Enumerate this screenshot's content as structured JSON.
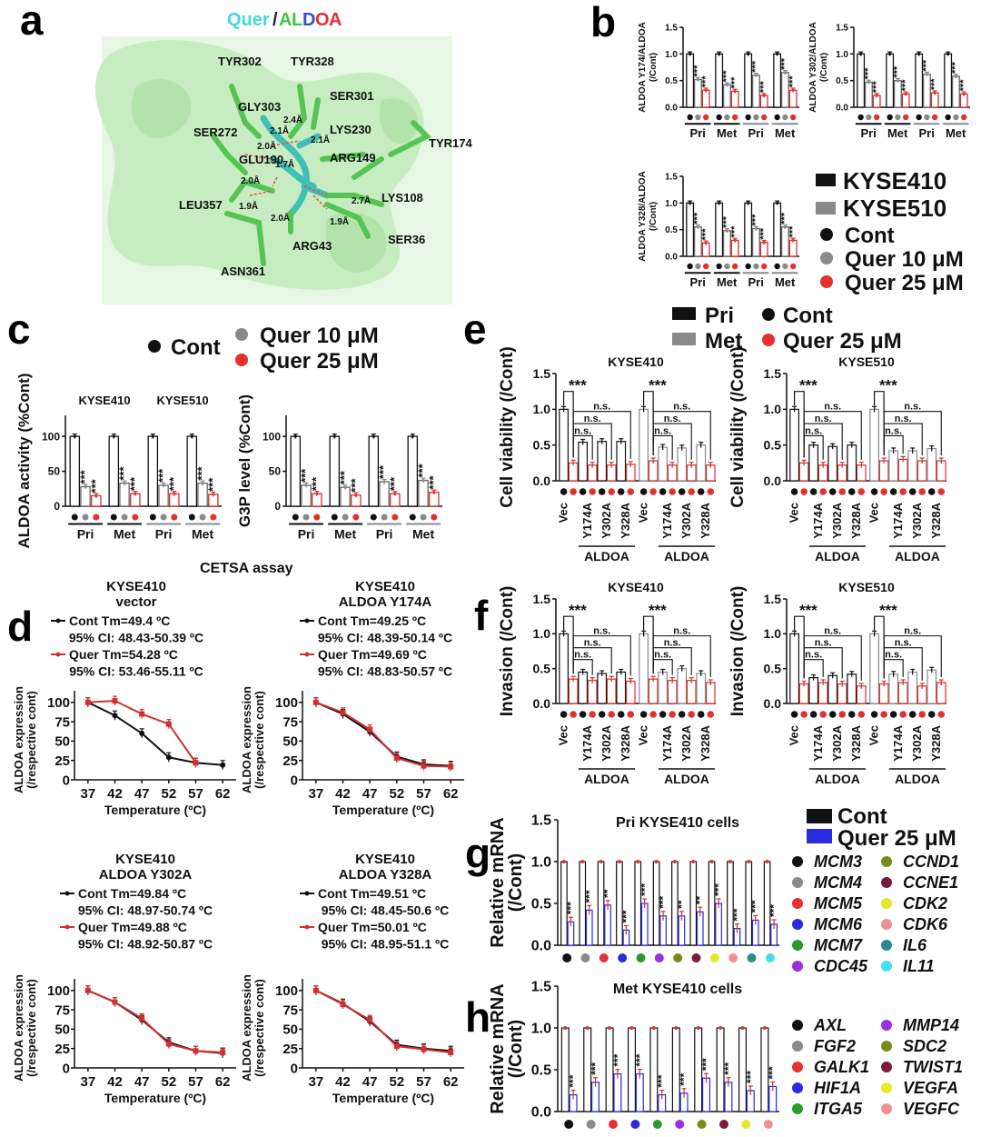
{
  "panel_letters": [
    "a",
    "b",
    "c",
    "d",
    "e",
    "f",
    "g",
    "h"
  ],
  "panel_a": {
    "title_quer": "Quer",
    "title_sep": "/",
    "title_aldoa": [
      "A",
      "L",
      "D",
      "O",
      "A"
    ],
    "title_aldoa_colors": [
      "#44c444",
      "#44c444",
      "#3050d0",
      "#e03030",
      "#e03030"
    ],
    "residues": [
      "TYR302",
      "TYR328",
      "SER301",
      "GLY303",
      "LYS230",
      "SER272",
      "TYR174",
      "ARG149",
      "GLU190",
      "LEU357",
      "LYS108",
      "ARG43",
      "SER36",
      "ASN361"
    ],
    "distances": [
      "2.4Å",
      "2.1Å",
      "2.1Å",
      "2.0Å",
      "2.0Å",
      "1.7Å",
      "1.9Å",
      "2.0Å",
      "2.7Å",
      "1.9Å"
    ]
  },
  "legend_b": {
    "lines": [
      "KYSE410",
      "KYSE510"
    ],
    "dots": [
      "Cont",
      "Quer 10 μM",
      "Quer 25 μM"
    ],
    "dot_colors": [
      "#111111",
      "#8a8a8a",
      "#e53030"
    ]
  },
  "legend_c": {
    "labels": [
      "Cont",
      "Quer 10 μM",
      "Quer 25 μM"
    ],
    "colors": [
      "#111111",
      "#8a8a8a",
      "#e53030"
    ]
  },
  "legend_e": {
    "bars": [
      "Pri",
      "Met"
    ],
    "dots": [
      "Cont",
      "Quer 25 μM"
    ]
  },
  "legend_g": {
    "bars": [
      "Cont",
      "Quer 25 μM"
    ],
    "bar_colors": [
      "#111111",
      "#2a2ae0"
    ]
  },
  "sig": {
    "star": "***",
    "star2": "**",
    "ns": "n.s."
  },
  "group_labels": {
    "pri": "Pri",
    "met": "Met",
    "vec": "Vec",
    "aldoa": "ALDOA",
    "mutants": [
      "Y174A",
      "Y302A",
      "Y328A"
    ]
  },
  "cetsa_label": "CETSA assay",
  "chart_data": [
    {
      "id": "b1",
      "type": "bar",
      "ylabel": "ALDOA Y174/ALDOA",
      "ylabel2": "(/Cont)",
      "ylim": [
        0,
        1.5
      ],
      "yticks": [
        "0.0",
        "0.5",
        "1.0",
        "1.5"
      ],
      "groups": [
        "Pri",
        "Met",
        "Pri",
        "Met"
      ],
      "values": [
        [
          1.0,
          0.52,
          0.32
        ],
        [
          1.0,
          0.42,
          0.3
        ],
        [
          1.0,
          0.6,
          0.22
        ],
        [
          1.0,
          0.65,
          0.32
        ]
      ]
    },
    {
      "id": "b2",
      "type": "bar",
      "ylabel": "ALDOA Y302/ALDOA",
      "ylabel2": "(/Cont)",
      "ylim": [
        0,
        1.5
      ],
      "yticks": [
        "0.0",
        "0.5",
        "1.0",
        "1.5"
      ],
      "groups": [
        "Pri",
        "Met",
        "Pri",
        "Met"
      ],
      "values": [
        [
          1.0,
          0.47,
          0.22
        ],
        [
          1.0,
          0.5,
          0.25
        ],
        [
          1.0,
          0.62,
          0.27
        ],
        [
          1.0,
          0.58,
          0.25
        ]
      ]
    },
    {
      "id": "b3",
      "type": "bar",
      "ylabel": "ALDOA Y328/ALDOA",
      "ylabel2": "(/Cont)",
      "ylim": [
        0,
        1.5
      ],
      "yticks": [
        "0.0",
        "0.5",
        "1.0",
        "1.5"
      ],
      "groups": [
        "Pri",
        "Met",
        "Pri",
        "Met"
      ],
      "values": [
        [
          1.0,
          0.55,
          0.25
        ],
        [
          1.0,
          0.48,
          0.3
        ],
        [
          1.0,
          0.52,
          0.26
        ],
        [
          1.0,
          0.55,
          0.3
        ]
      ]
    },
    {
      "id": "c1",
      "type": "bar",
      "ylabel": "ALDOA activity (%Cont)",
      "ylim": [
        0,
        130
      ],
      "yticks": [
        "0",
        "50",
        "100"
      ],
      "ytick_values": [
        0,
        50,
        100
      ],
      "cell_lines": [
        "KYSE410",
        "KYSE510"
      ],
      "groups": [
        "Pri",
        "Met",
        "Pri",
        "Met"
      ],
      "values": [
        [
          100,
          28,
          15
        ],
        [
          100,
          33,
          18
        ],
        [
          100,
          30,
          18
        ],
        [
          100,
          33,
          17
        ]
      ]
    },
    {
      "id": "c2",
      "type": "bar",
      "ylabel": "G3P level (%Cont)",
      "ylim": [
        0,
        130
      ],
      "yticks": [
        "0",
        "50",
        "100"
      ],
      "ytick_values": [
        0,
        50,
        100
      ],
      "groups": [
        "Pri",
        "Met",
        "Pri",
        "Met"
      ],
      "values": [
        [
          100,
          30,
          18
        ],
        [
          100,
          27,
          16
        ],
        [
          100,
          35,
          18
        ],
        [
          100,
          37,
          20
        ]
      ]
    },
    {
      "id": "e1",
      "type": "bar",
      "title": "KYSE410",
      "ylabel": "Cell viability (/Cont)",
      "ylim": [
        0,
        1.5
      ],
      "yticks": [
        "0.0",
        "0.5",
        "1.0",
        "1.5"
      ],
      "values": [
        [
          1.0,
          0.25,
          0.54,
          0.22,
          0.55,
          0.22,
          0.55,
          0.23
        ],
        [
          1.0,
          0.28,
          0.47,
          0.22,
          0.46,
          0.22,
          0.5,
          0.22
        ]
      ]
    },
    {
      "id": "e2",
      "type": "bar",
      "title": "KYSE510",
      "ylabel": "Cell viability (/Cont)",
      "ylim": [
        0,
        1.5
      ],
      "yticks": [
        "0.0",
        "0.5",
        "1.0",
        "1.5"
      ],
      "values": [
        [
          1.0,
          0.25,
          0.5,
          0.22,
          0.48,
          0.22,
          0.5,
          0.22
        ],
        [
          1.0,
          0.28,
          0.42,
          0.3,
          0.42,
          0.28,
          0.45,
          0.28
        ]
      ]
    },
    {
      "id": "f1",
      "type": "bar",
      "title": "KYSE410",
      "ylabel": "Invasion (/Cont)",
      "ylim": [
        0,
        1.5
      ],
      "yticks": [
        "0.0",
        "0.5",
        "1.0",
        "1.5"
      ],
      "values": [
        [
          1.0,
          0.35,
          0.45,
          0.33,
          0.43,
          0.35,
          0.45,
          0.32
        ],
        [
          1.0,
          0.35,
          0.45,
          0.33,
          0.5,
          0.33,
          0.43,
          0.3
        ]
      ]
    },
    {
      "id": "f2",
      "type": "bar",
      "title": "KYSE510",
      "ylabel": "Invasion (/Cont)",
      "ylim": [
        0,
        1.5
      ],
      "yticks": [
        "0.0",
        "0.5",
        "1.0",
        "1.5"
      ],
      "values": [
        [
          1.0,
          0.28,
          0.37,
          0.3,
          0.4,
          0.28,
          0.42,
          0.25
        ],
        [
          1.0,
          0.28,
          0.42,
          0.3,
          0.45,
          0.25,
          0.48,
          0.3
        ]
      ]
    },
    {
      "id": "d1",
      "type": "line",
      "title": "KYSE410",
      "subtitle": "vector",
      "xlabel": "Temperature (ºC)",
      "ylabel": "ALDOA expression",
      "ylabel2": "(/respective cont)",
      "x": [
        37,
        42,
        47,
        52,
        57,
        62
      ],
      "yticks": [
        "0",
        "25",
        "50",
        "75",
        "100"
      ],
      "ylim": [
        0,
        115
      ],
      "legend": [
        "Cont  Tm=49.4 ºC",
        "95% CI: 48.43-50.39 ºC",
        "Quer  Tm=54.28 ºC",
        "95% CI: 53.46-55.11 ºC"
      ],
      "series": [
        {
          "name": "Cont",
          "values": [
            100,
            83,
            60,
            29,
            22,
            19
          ]
        },
        {
          "name": "Quer",
          "values": [
            100,
            102,
            85,
            72,
            22,
            null
          ]
        }
      ]
    },
    {
      "id": "d2",
      "type": "line",
      "title": "KYSE410",
      "subtitle": "ALDOA Y174A",
      "xlabel": "Temperature (ºC)",
      "ylabel": "ALDOA expression",
      "ylabel2": "(/respective cont)",
      "x": [
        37,
        42,
        47,
        52,
        57,
        62
      ],
      "yticks": [
        "0",
        "25",
        "50",
        "75",
        "100"
      ],
      "ylim": [
        0,
        115
      ],
      "legend": [
        "Cont  Tm=49.25 ºC",
        "95% CI: 48.39-50.14 ºC",
        "Quer  Tm=49.69 ºC",
        "95% CI: 48.83-50.57 ºC"
      ],
      "series": [
        {
          "name": "Cont",
          "values": [
            100,
            85,
            62,
            30,
            20,
            18
          ]
        },
        {
          "name": "Quer",
          "values": [
            100,
            87,
            65,
            28,
            18,
            17
          ]
        }
      ]
    },
    {
      "id": "d3",
      "type": "line",
      "title": "KYSE410",
      "subtitle": "ALDOA Y302A",
      "xlabel": "Temperature (ºC)",
      "ylabel": "ALDOA expression",
      "ylabel2": "(/respective cont)",
      "x": [
        37,
        42,
        47,
        52,
        57,
        62
      ],
      "yticks": [
        "0",
        "25",
        "50",
        "75",
        "100"
      ],
      "ylim": [
        0,
        115
      ],
      "legend": [
        "Cont  Tm=49.84 ºC",
        "95% CI: 48.97-50.74 ºC",
        "Quer  Tm=49.88 ºC",
        "95% CI: 48.92-50.87 ºC"
      ],
      "series": [
        {
          "name": "Cont",
          "values": [
            100,
            85,
            62,
            33,
            22,
            19
          ]
        },
        {
          "name": "Quer",
          "values": [
            100,
            85,
            64,
            31,
            22,
            20
          ]
        }
      ]
    },
    {
      "id": "d4",
      "type": "line",
      "title": "KYSE410",
      "subtitle": "ALDOA Y328A",
      "xlabel": "Temperature (ºC)",
      "ylabel": "ALDOA expression",
      "ylabel2": "(/respective cont)",
      "x": [
        37,
        42,
        47,
        52,
        57,
        62
      ],
      "yticks": [
        "0",
        "25",
        "50",
        "75",
        "100"
      ],
      "ylim": [
        0,
        115
      ],
      "legend": [
        "Cont  Tm=49.51 ºC",
        "95% CI: 48.45-50.6 ºC",
        "Quer  Tm=50.01 ºC",
        "95% CI: 48.95-51.1 ºC"
      ],
      "series": [
        {
          "name": "Cont",
          "values": [
            100,
            83,
            60,
            30,
            25,
            22
          ]
        },
        {
          "name": "Quer",
          "values": [
            100,
            82,
            62,
            28,
            24,
            20
          ]
        }
      ]
    },
    {
      "id": "g",
      "type": "bar",
      "title": "Pri KYSE410 cells",
      "ylabel": "Relative mRNA",
      "ylabel2": "(/Cont)",
      "ylim": [
        0,
        1.5
      ],
      "yticks": [
        "0.0",
        "0.5",
        "1.0",
        "1.5"
      ],
      "categories": [
        "MCM3",
        "MCM4",
        "MCM5",
        "MCM6",
        "MCM7",
        "CDC45",
        "CCND1",
        "CCNE1",
        "CDK2",
        "CDK6",
        "IL6",
        "IL11"
      ],
      "colors": [
        "#111111",
        "#8a8a8a",
        "#e53030",
        "#2a2ae0",
        "#2a9a2a",
        "#9b30e0",
        "#7a8a1a",
        "#7a1a3a",
        "#e8e82a",
        "#f09090",
        "#2a8a8a",
        "#40e0f0"
      ],
      "values": [
        0.28,
        0.42,
        0.48,
        0.18,
        0.5,
        0.35,
        0.35,
        0.4,
        0.5,
        0.2,
        0.3,
        0.25
      ],
      "sig": [
        "***",
        "***",
        "**",
        "***",
        "***",
        "***",
        "**",
        "**",
        "***",
        "***",
        "***",
        "***"
      ]
    },
    {
      "id": "h",
      "type": "bar",
      "title": "Met KYSE410 cells",
      "ylabel": "Relative mRNA",
      "ylabel2": "(/Cont)",
      "ylim": [
        0,
        1.5
      ],
      "yticks": [
        "0.0",
        "0.5",
        "1.0",
        "1.5"
      ],
      "categories": [
        "AXL",
        "FGF2",
        "GALK1",
        "HIF1A",
        "ITGA5",
        "MMP14",
        "SDC2",
        "TWIST1",
        "VEGFA",
        "VEGFC"
      ],
      "colors": [
        "#111111",
        "#8a8a8a",
        "#e53030",
        "#2a2ae0",
        "#2a9a2a",
        "#9b30e0",
        "#7a8a1a",
        "#7a1a3a",
        "#e8e82a",
        "#f09090"
      ],
      "values": [
        0.2,
        0.35,
        0.45,
        0.45,
        0.2,
        0.22,
        0.4,
        0.35,
        0.25,
        0.3
      ],
      "sig": [
        "***",
        "***",
        "***",
        "***",
        "***",
        "***",
        "***",
        "***",
        "***",
        "***"
      ]
    }
  ]
}
